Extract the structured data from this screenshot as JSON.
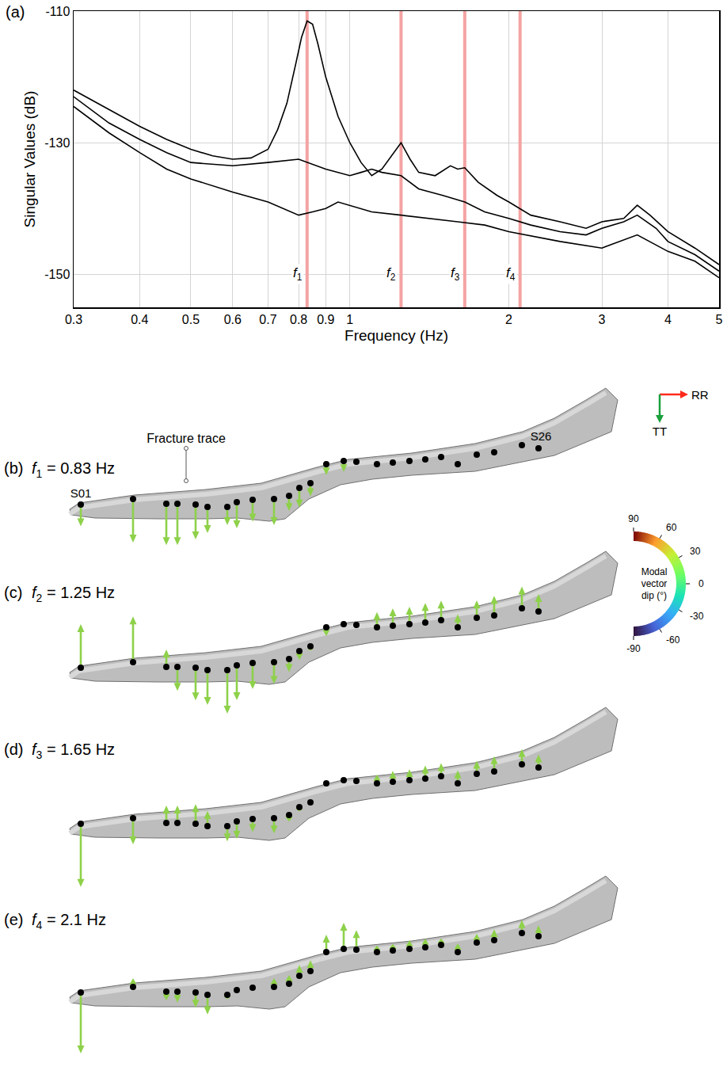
{
  "chart_data": {
    "type": "line",
    "panel_label": "(a)",
    "x_label": "Frequency (Hz)",
    "y_label": "Singular Values (dB)",
    "log": "x",
    "grid": true,
    "xlim": [
      0.3,
      5
    ],
    "xticks": [
      0.3,
      0.4,
      0.5,
      0.6,
      0.7,
      0.8,
      0.9,
      1,
      2,
      3,
      4,
      5
    ],
    "ylim": [
      -155,
      -110
    ],
    "yticks": [
      -150,
      -130,
      -110
    ],
    "frequency_lines": {
      "color": "#f4a3a3"
    },
    "series": [
      {
        "color": "#000000",
        "x": [
          0.3,
          0.35,
          0.4,
          0.45,
          0.5,
          0.55,
          0.6,
          0.65,
          0.7,
          0.73,
          0.76,
          0.79,
          0.81,
          0.83,
          0.85,
          0.87,
          0.9,
          0.95,
          1.0,
          1.05,
          1.1,
          1.15,
          1.2,
          1.25,
          1.3,
          1.35,
          1.45,
          1.55,
          1.6,
          1.65,
          1.75,
          1.9,
          2.0,
          2.05,
          2.2,
          2.5,
          2.8,
          3.0,
          3.3,
          3.5,
          3.7,
          4.0,
          4.5,
          5.0
        ],
        "values": [
          -122,
          -125,
          -127.5,
          -129.5,
          -131,
          -132,
          -132.5,
          -132.3,
          -131,
          -128,
          -124,
          -118,
          -114,
          -111.5,
          -112,
          -115,
          -120,
          -126,
          -130,
          -133,
          -135,
          -134,
          -132,
          -130,
          -132.5,
          -134.5,
          -135,
          -133.5,
          -134,
          -133.8,
          -136,
          -138,
          -139,
          -139.5,
          -141,
          -142,
          -143,
          -142,
          -141.5,
          -139.5,
          -141,
          -143.5,
          -146,
          -148.5
        ]
      },
      {
        "color": "#000000",
        "x": [
          0.3,
          0.35,
          0.4,
          0.45,
          0.5,
          0.6,
          0.7,
          0.8,
          0.9,
          1.0,
          1.05,
          1.1,
          1.15,
          1.25,
          1.35,
          1.5,
          1.65,
          1.8,
          2.0,
          2.2,
          2.5,
          2.8,
          3.0,
          3.3,
          3.5,
          3.8,
          4.0,
          4.5,
          5.0
        ],
        "values": [
          -123,
          -127,
          -129.5,
          -131.5,
          -133,
          -133.5,
          -133,
          -132.5,
          -134,
          -135,
          -134.5,
          -134,
          -134.5,
          -135,
          -137,
          -138,
          -139,
          -140.5,
          -141.5,
          -142.5,
          -143.5,
          -144,
          -143,
          -142,
          -141,
          -143,
          -145,
          -147,
          -149.5
        ]
      },
      {
        "color": "#000000",
        "x": [
          0.3,
          0.35,
          0.4,
          0.45,
          0.5,
          0.6,
          0.7,
          0.8,
          0.85,
          0.9,
          0.95,
          1.0,
          1.1,
          1.25,
          1.4,
          1.6,
          1.8,
          2.0,
          2.5,
          3.0,
          3.5,
          4.0,
          4.5,
          5.0
        ],
        "values": [
          -124.5,
          -128.5,
          -131.5,
          -134,
          -135.5,
          -137.5,
          -139,
          -141,
          -140.5,
          -140,
          -139,
          -139.5,
          -140.5,
          -141,
          -141.5,
          -142,
          -142.5,
          -143.5,
          -145,
          -146,
          -144,
          -146.5,
          -148,
          -150.5
        ]
      }
    ]
  },
  "modes": [
    {
      "letter": "(b)",
      "title": {
        "symbol": "f",
        "index": "1",
        "text": " = 0.83 Hz"
      },
      "freq": 0.83,
      "modal_vector": [
        0.5,
        1.0,
        0.95,
        0.95,
        0.8,
        0.6,
        0.42,
        0.6,
        0.5,
        0.6,
        0.35,
        0.45,
        0.3,
        0.25,
        0.25,
        0,
        0,
        0,
        0,
        0,
        0,
        0,
        0,
        0,
        0,
        0
      ]
    },
    {
      "letter": "(c)",
      "title": {
        "symbol": "f",
        "index": "2",
        "text": " = 1.25 Hz"
      },
      "freq": 1.25,
      "modal_vector": [
        -1.0,
        -1.05,
        -0.4,
        0.55,
        0.75,
        0.8,
        1.0,
        0.8,
        0.6,
        0.5,
        0.3,
        0.2,
        0.1,
        0.2,
        0,
        0,
        -0.35,
        -0.4,
        -0.4,
        -0.45,
        -0.45,
        -0.3,
        -0.4,
        -0.45,
        -0.5,
        -0.4
      ]
    },
    {
      "letter": "(d)",
      "title": {
        "symbol": "f",
        "index": "3",
        "text": " = 1.65 Hz"
      },
      "freq": 1.65,
      "modal_vector": [
        1.45,
        0.6,
        -0.4,
        -0.4,
        -0.45,
        -0.35,
        0.35,
        0.4,
        0.3,
        0.35,
        0.15,
        0.1,
        0,
        0,
        0,
        0,
        -0.2,
        -0.25,
        -0.25,
        -0.3,
        -0.3,
        -0.3,
        -0.3,
        -0.35,
        -0.35,
        -0.3
      ]
    },
    {
      "letter": "(e)",
      "title": {
        "symbol": "f",
        "index": "4",
        "text": " = 2.1 Hz"
      },
      "freq": 2.1,
      "modal_vector": [
        1.4,
        -0.2,
        0.2,
        0.25,
        0.35,
        0.45,
        0.1,
        0,
        0,
        -0.2,
        -0.2,
        -0.25,
        -0.25,
        -0.4,
        -0.6,
        -0.45,
        -0.15,
        -0.15,
        -0.2,
        -0.2,
        -0.15,
        -0.2,
        -0.2,
        -0.25,
        -0.3,
        -0.25
      ]
    }
  ],
  "arrow_color": "#8ed14a",
  "station_labels": [
    "S01",
    null,
    null,
    null,
    null,
    null,
    null,
    null,
    null,
    null,
    null,
    null,
    null,
    null,
    null,
    null,
    null,
    null,
    null,
    null,
    null,
    null,
    null,
    null,
    null,
    "S26"
  ],
  "fracture_label": "Fracture trace",
  "axes_icon": {
    "labels": [
      "RR",
      "TT"
    ],
    "colors": [
      "#ff2a1a",
      "#1aa03c"
    ]
  },
  "colorbar": {
    "title": "Modal vector dip (°)",
    "range": [
      -90,
      90
    ],
    "ticks": [
      -90,
      -60,
      -30,
      0,
      30,
      60,
      90
    ]
  }
}
